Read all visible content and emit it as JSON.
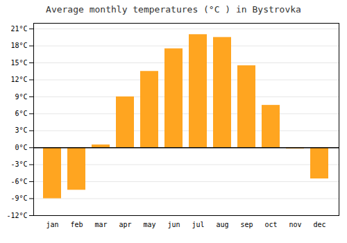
{
  "chart_data": {
    "type": "bar",
    "title": "Average monthly temperatures (°C ) in Bystrovka",
    "categories": [
      "jan",
      "feb",
      "mar",
      "apr",
      "may",
      "jun",
      "jul",
      "aug",
      "sep",
      "oct",
      "nov",
      "dec"
    ],
    "values": [
      -9.0,
      -7.5,
      0.5,
      9.0,
      13.5,
      17.5,
      20.0,
      19.5,
      14.5,
      7.5,
      -0.2,
      -5.5
    ],
    "color": "#FFA520",
    "ylim": [
      -12,
      22
    ],
    "yticks": [
      {
        "value": -12,
        "label": "-12°C"
      },
      {
        "value": -9,
        "label": "-9°C"
      },
      {
        "value": -6,
        "label": "-6°C"
      },
      {
        "value": -3,
        "label": "-3°C"
      },
      {
        "value": 0,
        "label": "0°C"
      },
      {
        "value": 3,
        "label": "3°C"
      },
      {
        "value": 6,
        "label": "6°C"
      },
      {
        "value": 9,
        "label": "9°C"
      },
      {
        "value": 12,
        "label": "12°C"
      },
      {
        "value": 15,
        "label": "15°C"
      },
      {
        "value": 18,
        "label": "18°C"
      },
      {
        "value": 21,
        "label": "21°C"
      }
    ],
    "grid": true
  }
}
